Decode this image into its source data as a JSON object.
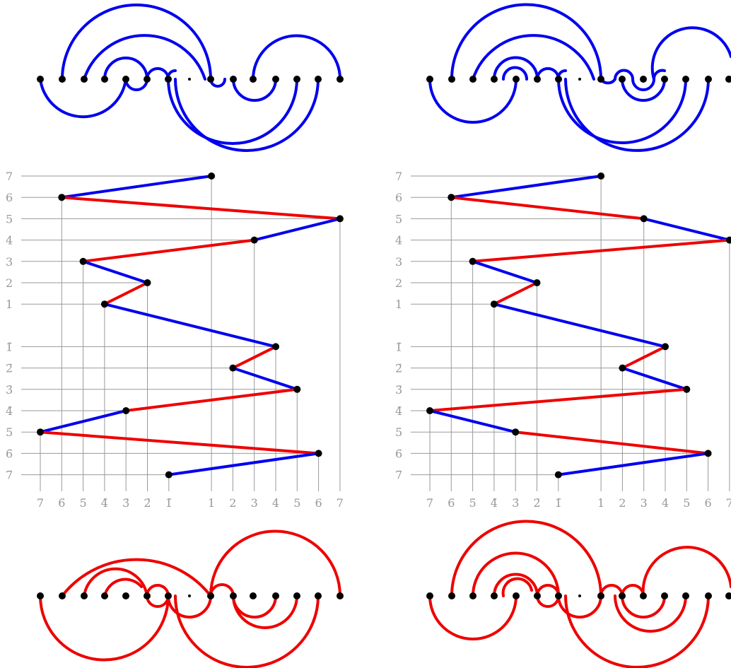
{
  "colors": {
    "blue": "#0000ee",
    "red": "#ee0000",
    "grid": "#999999",
    "dot": "#000000"
  },
  "panels": [
    {
      "id": "left",
      "y_labels": [
        "7",
        "6",
        "5",
        "4",
        "3",
        "2",
        "1",
        "1̄",
        "2̄",
        "3̄",
        "4̄",
        "5̄",
        "6̄",
        "7̄"
      ],
      "x_labels": [
        "7̄",
        "6̄",
        "5̄",
        "4̄",
        "3̄",
        "2̄",
        "1̄",
        "1",
        "2",
        "3",
        "4",
        "5",
        "6",
        "7"
      ],
      "points": [
        {
          "x": "1",
          "y": "7"
        },
        {
          "x": "6̄",
          "y": "6"
        },
        {
          "x": "7",
          "y": "5"
        },
        {
          "x": "3",
          "y": "4"
        },
        {
          "x": "5̄",
          "y": "3"
        },
        {
          "x": "2̄",
          "y": "2"
        },
        {
          "x": "4̄",
          "y": "1"
        },
        {
          "x": "4",
          "y": "1̄"
        },
        {
          "x": "2",
          "y": "2̄"
        },
        {
          "x": "5",
          "y": "3̄"
        },
        {
          "x": "3̄",
          "y": "4̄"
        },
        {
          "x": "7̄",
          "y": "5̄"
        },
        {
          "x": "6",
          "y": "6̄"
        },
        {
          "x": "1̄",
          "y": "7̄"
        }
      ]
    },
    {
      "id": "right",
      "y_labels": [
        "7",
        "6",
        "5",
        "4",
        "3",
        "2",
        "1",
        "1̄",
        "2̄",
        "3̄",
        "4̄",
        "5̄",
        "6̄",
        "7̄"
      ],
      "x_labels": [
        "7̄",
        "6̄",
        "5̄",
        "4̄",
        "3̄",
        "2̄",
        "1̄",
        "1",
        "2",
        "3",
        "4",
        "5",
        "6",
        "7"
      ],
      "points": [
        {
          "x": "1",
          "y": "7"
        },
        {
          "x": "6̄",
          "y": "6"
        },
        {
          "x": "3",
          "y": "5"
        },
        {
          "x": "7",
          "y": "4"
        },
        {
          "x": "5̄",
          "y": "3"
        },
        {
          "x": "2̄",
          "y": "2"
        },
        {
          "x": "4̄",
          "y": "1"
        },
        {
          "x": "4",
          "y": "1̄"
        },
        {
          "x": "2",
          "y": "2̄"
        },
        {
          "x": "5",
          "y": "3̄"
        },
        {
          "x": "7̄",
          "y": "4̄"
        },
        {
          "x": "3̄",
          "y": "5̄"
        },
        {
          "x": "6",
          "y": "6̄"
        },
        {
          "x": "1̄",
          "y": "7̄"
        }
      ]
    }
  ]
}
